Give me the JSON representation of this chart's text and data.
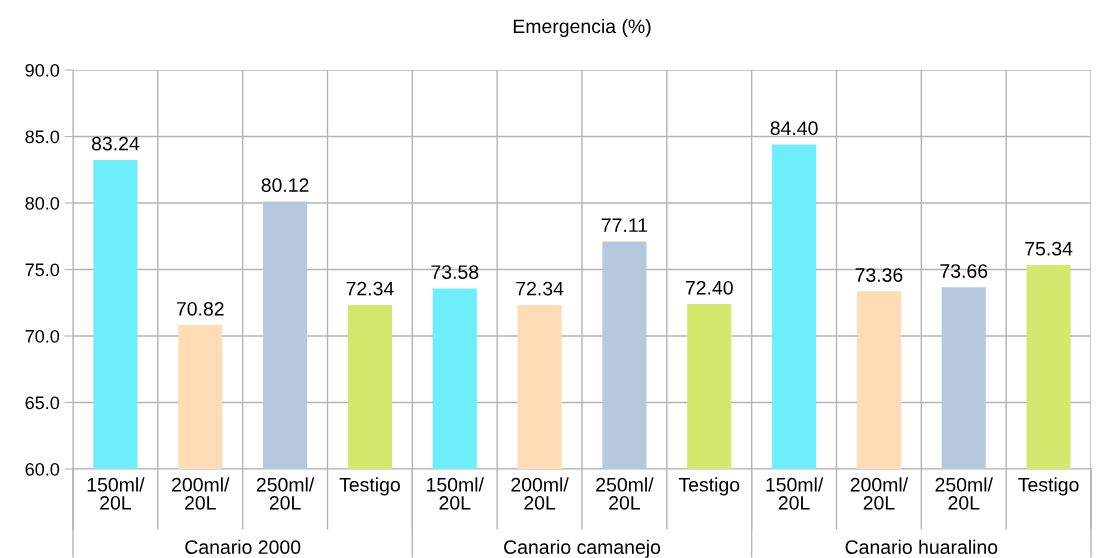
{
  "chart_data": {
    "type": "bar",
    "title": "Emergencia (%)",
    "categories": [
      "150ml/\n20L",
      "200ml/\n20L",
      "250ml/\n20L",
      "Testigo",
      "150ml/\n20L",
      "200ml/\n20L",
      "250ml/\n20L",
      "Testigo",
      "150ml/\n20L",
      "200ml/\n20L",
      "250ml/\n20L",
      "Testigo"
    ],
    "values": [
      83.24,
      70.82,
      80.12,
      72.34,
      73.58,
      72.34,
      77.11,
      72.4,
      84.4,
      73.36,
      73.66,
      75.34
    ],
    "colors": [
      "#6eeefa",
      "#ffdbb6",
      "#b5c8de",
      "#d5e86e",
      "#6eeefa",
      "#ffdbb6",
      "#b5c8de",
      "#d5e86e",
      "#6eeefa",
      "#ffdbb6",
      "#b5c8de",
      "#d5e86e"
    ],
    "annotations": [
      "Canario 2000",
      "Canario camanejo",
      "Canario huaralino"
    ],
    "ylim": [
      60,
      90
    ],
    "yticks": [
      {
        "value": 60,
        "label": "60.0"
      },
      {
        "value": 65,
        "label": "65.0"
      },
      {
        "value": 70,
        "label": "70.0"
      },
      {
        "value": 75,
        "label": "75.0"
      },
      {
        "value": 80,
        "label": "80.0"
      },
      {
        "value": 85,
        "label": "85.0"
      },
      {
        "value": 90,
        "label": "90.0"
      }
    ],
    "value_labels": [
      "83.24",
      "70.82",
      "80.12",
      "72.34",
      "73.58",
      "72.34",
      "77.11",
      "72.40",
      "84.40",
      "73.36",
      "73.66",
      "75.34"
    ],
    "grid": true
  }
}
